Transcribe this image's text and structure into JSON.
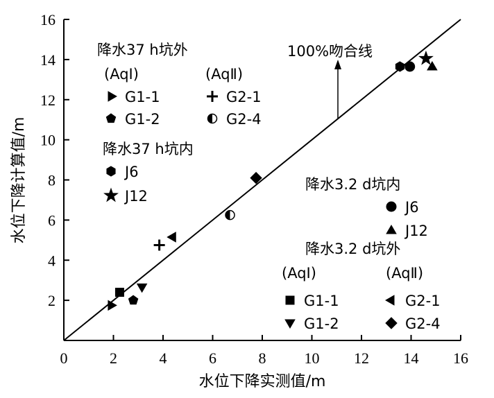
{
  "chart_data": {
    "type": "scatter",
    "xlabel": "水位下降实测值/m",
    "ylabel": "水位下降计算值/m",
    "xlim": [
      0,
      16
    ],
    "ylim": [
      0,
      16
    ],
    "xticks": [
      "0",
      "2",
      "4",
      "6",
      "8",
      "10",
      "12",
      "14",
      "16"
    ],
    "yticks": [
      "2",
      "4",
      "6",
      "8",
      "10",
      "12",
      "14",
      "16"
    ],
    "grid": false,
    "reference_line": {
      "label": "100%吻合线",
      "x": [
        0,
        16
      ],
      "y": [
        0,
        16
      ]
    },
    "series": [
      {
        "name": "G1-1",
        "marker": "triangle-right",
        "x": [
          1.9
        ],
        "y": [
          1.75
        ]
      },
      {
        "name": "G1-2",
        "marker": "pentagon",
        "x": [
          2.8
        ],
        "y": [
          2.0
        ]
      },
      {
        "name": "G2-1",
        "marker": "plus",
        "x": [
          3.85
        ],
        "y": [
          4.75
        ]
      },
      {
        "name": "G2-4",
        "marker": "half-circle",
        "x": [
          6.7
        ],
        "y": [
          6.25
        ]
      },
      {
        "name": "J6",
        "marker": "hexagon",
        "x": [
          13.55
        ],
        "y": [
          13.65
        ]
      },
      {
        "name": "J12",
        "marker": "star",
        "x": [
          14.6
        ],
        "y": [
          14.05
        ]
      },
      {
        "name": "J6",
        "marker": "circle",
        "x": [
          13.95
        ],
        "y": [
          13.65
        ]
      },
      {
        "name": "J12",
        "marker": "triangle-up",
        "x": [
          14.85
        ],
        "y": [
          13.65
        ]
      },
      {
        "name": "G1-1",
        "marker": "square",
        "x": [
          2.25
        ],
        "y": [
          2.4
        ]
      },
      {
        "name": "G1-2",
        "marker": "triangle-down",
        "x": [
          3.15
        ],
        "y": [
          2.65
        ]
      },
      {
        "name": "G2-1",
        "marker": "triangle-left",
        "x": [
          4.4
        ],
        "y": [
          5.15
        ]
      },
      {
        "name": "G2-4",
        "marker": "diamond",
        "x": [
          7.75
        ],
        "y": [
          8.1
        ]
      }
    ],
    "legend_groups": [
      {
        "title": "降水37 h坑外",
        "aq1": "(AqⅠ)",
        "aq2": "(AqⅡ)"
      },
      {
        "title": "降水37 h坑内"
      },
      {
        "title": "降水3.2 d坑内"
      },
      {
        "title": "降水3.2 d坑外",
        "aq1": "(AqⅠ)",
        "aq2": "(AqⅡ)"
      }
    ],
    "legend_entries": [
      "G1-1",
      "G1-2",
      "G2-1",
      "G2-4",
      "J6",
      "J12",
      "J6",
      "J12",
      "G1-1",
      "G1-2",
      "G2-1",
      "G2-4"
    ]
  }
}
